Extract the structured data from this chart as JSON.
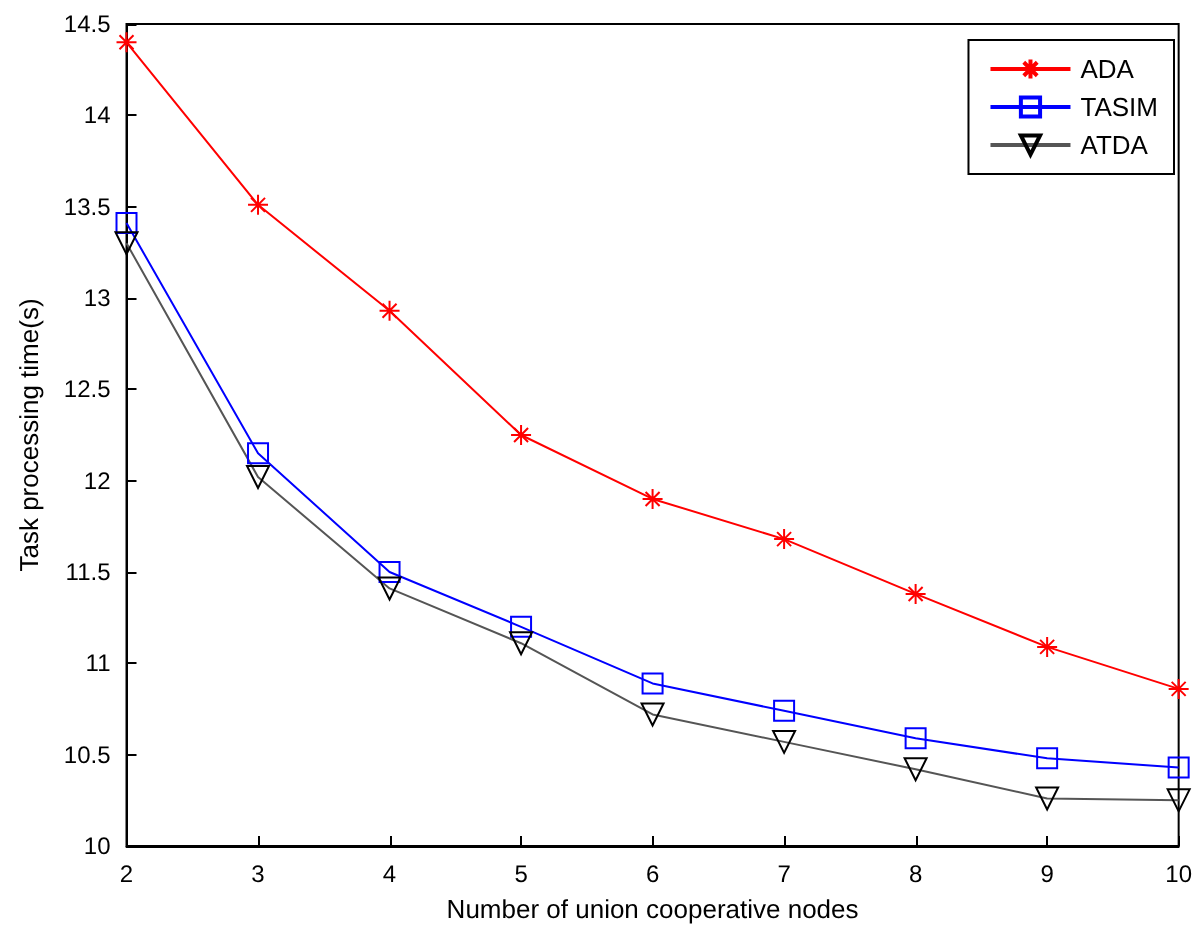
{
  "chart_data": {
    "type": "line",
    "xlabel": "Number of union cooperative nodes",
    "ylabel": "Task processing time(s)",
    "x": [
      2,
      3,
      4,
      5,
      6,
      7,
      8,
      9,
      10
    ],
    "series": [
      {
        "name": "ADA",
        "color": "#ff0000",
        "marker": "cross",
        "values": [
          14.4,
          13.51,
          12.93,
          12.25,
          11.9,
          11.68,
          11.38,
          11.09,
          10.86
        ]
      },
      {
        "name": "TASIM",
        "color": "#0000ff",
        "marker": "square",
        "values": [
          13.41,
          12.15,
          11.5,
          11.2,
          10.89,
          10.74,
          10.59,
          10.48,
          10.43
        ]
      },
      {
        "name": "ATDA",
        "color": "#555555",
        "marker": "triangle",
        "values": [
          13.3,
          12.02,
          11.41,
          11.11,
          10.72,
          10.57,
          10.42,
          10.26,
          10.25
        ]
      }
    ],
    "xlim": [
      2,
      10
    ],
    "xticks": [
      2,
      3,
      4,
      5,
      6,
      7,
      8,
      9,
      10
    ],
    "ylim": [
      10,
      14.5
    ],
    "yticks": [
      10,
      10.5,
      11,
      11.5,
      12,
      12.5,
      13,
      13.5,
      14,
      14.5
    ],
    "grid": false,
    "legend": "top right",
    "line_style": "solid"
  }
}
